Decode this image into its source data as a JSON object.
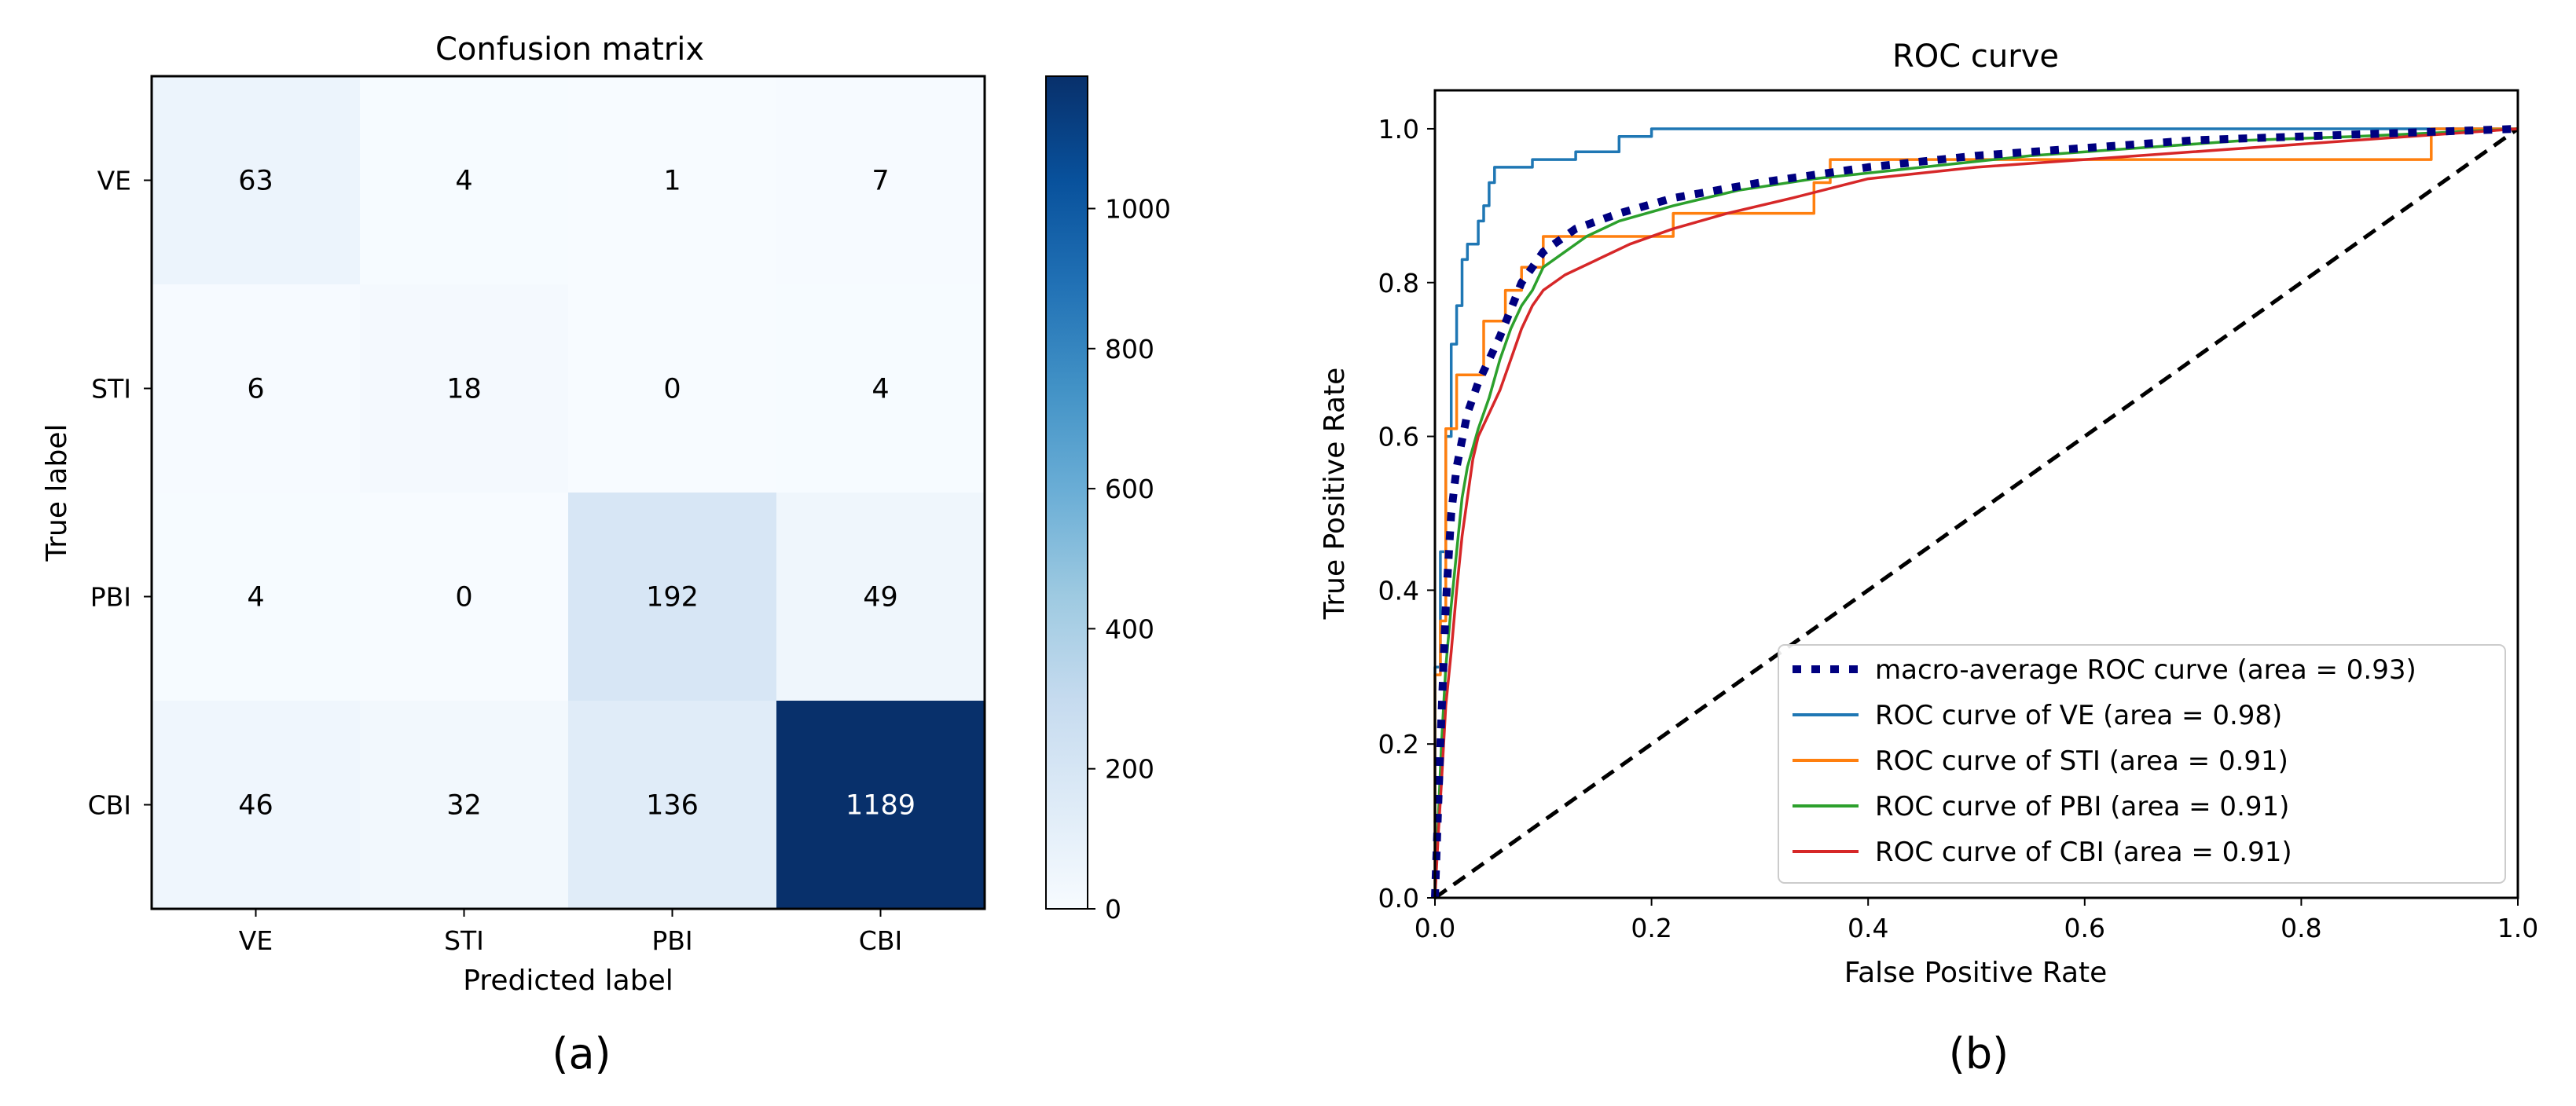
{
  "panel_labels": {
    "a": "(a)",
    "b": "(b)"
  },
  "colors": {
    "ve": "#1f77b4",
    "sti": "#ff7f0e",
    "pbi": "#2ca02c",
    "cbi": "#d62728",
    "macro": "#000080",
    "chance": "#000000"
  },
  "chart_data": [
    {
      "type": "heatmap",
      "title": "Confusion matrix",
      "xlabel": "Predicted label",
      "ylabel": "True label",
      "x_tick_labels": [
        "VE",
        "STI",
        "PBI",
        "CBI"
      ],
      "y_tick_labels": [
        "VE",
        "STI",
        "PBI",
        "CBI"
      ],
      "matrix": [
        [
          63,
          4,
          1,
          7
        ],
        [
          6,
          18,
          0,
          4
        ],
        [
          4,
          0,
          192,
          49
        ],
        [
          46,
          32,
          136,
          1189
        ]
      ],
      "colormap": "Blues",
      "colorbar": {
        "min": 0,
        "max": 1189,
        "ticks": [
          0,
          200,
          400,
          600,
          800,
          1000
        ]
      }
    },
    {
      "type": "line",
      "title": "ROC curve",
      "xlabel": "False Positive Rate",
      "ylabel": "True Positive Rate",
      "xlim": [
        0,
        1
      ],
      "ylim": [
        0,
        1.05
      ],
      "x_ticks": [
        "0.0",
        "0.2",
        "0.4",
        "0.6",
        "0.8",
        "1.0"
      ],
      "y_ticks": [
        "0.0",
        "0.2",
        "0.4",
        "0.6",
        "0.8",
        "1.0"
      ],
      "legend_position": "lower-right",
      "series": [
        {
          "name": "macro-average ROC curve (area = 0.93)",
          "color": "#000080",
          "style": "dotted",
          "points": [
            [
              0,
              0
            ],
            [
              0.005,
              0.2
            ],
            [
              0.01,
              0.38
            ],
            [
              0.015,
              0.5
            ],
            [
              0.02,
              0.56
            ],
            [
              0.03,
              0.63
            ],
            [
              0.04,
              0.67
            ],
            [
              0.05,
              0.7
            ],
            [
              0.06,
              0.73
            ],
            [
              0.08,
              0.8
            ],
            [
              0.1,
              0.84
            ],
            [
              0.13,
              0.87
            ],
            [
              0.17,
              0.89
            ],
            [
              0.22,
              0.91
            ],
            [
              0.3,
              0.93
            ],
            [
              0.4,
              0.95
            ],
            [
              0.5,
              0.965
            ],
            [
              0.6,
              0.975
            ],
            [
              0.7,
              0.985
            ],
            [
              0.8,
              0.99
            ],
            [
              0.9,
              0.995
            ],
            [
              1,
              1
            ]
          ]
        },
        {
          "name": "ROC curve of VE (area = 0.98)",
          "color": "#1f77b4",
          "style": "solid",
          "points": [
            [
              0,
              0
            ],
            [
              0,
              0.3
            ],
            [
              0.005,
              0.3
            ],
            [
              0.005,
              0.45
            ],
            [
              0.01,
              0.45
            ],
            [
              0.01,
              0.6
            ],
            [
              0.015,
              0.6
            ],
            [
              0.015,
              0.72
            ],
            [
              0.02,
              0.72
            ],
            [
              0.02,
              0.77
            ],
            [
              0.025,
              0.77
            ],
            [
              0.025,
              0.83
            ],
            [
              0.03,
              0.83
            ],
            [
              0.03,
              0.85
            ],
            [
              0.04,
              0.85
            ],
            [
              0.04,
              0.88
            ],
            [
              0.045,
              0.88
            ],
            [
              0.045,
              0.9
            ],
            [
              0.05,
              0.9
            ],
            [
              0.05,
              0.93
            ],
            [
              0.055,
              0.93
            ],
            [
              0.055,
              0.95
            ],
            [
              0.09,
              0.95
            ],
            [
              0.09,
              0.96
            ],
            [
              0.13,
              0.96
            ],
            [
              0.13,
              0.97
            ],
            [
              0.17,
              0.97
            ],
            [
              0.17,
              0.99
            ],
            [
              0.2,
              0.99
            ],
            [
              0.2,
              1.0
            ],
            [
              1,
              1
            ]
          ]
        },
        {
          "name": "ROC curve of STI (area = 0.91)",
          "color": "#ff7f0e",
          "style": "solid",
          "points": [
            [
              0,
              0
            ],
            [
              0,
              0.29
            ],
            [
              0.005,
              0.29
            ],
            [
              0.005,
              0.36
            ],
            [
              0.01,
              0.36
            ],
            [
              0.01,
              0.61
            ],
            [
              0.02,
              0.61
            ],
            [
              0.02,
              0.68
            ],
            [
              0.045,
              0.68
            ],
            [
              0.045,
              0.75
            ],
            [
              0.065,
              0.75
            ],
            [
              0.065,
              0.79
            ],
            [
              0.08,
              0.79
            ],
            [
              0.08,
              0.82
            ],
            [
              0.1,
              0.82
            ],
            [
              0.1,
              0.86
            ],
            [
              0.22,
              0.86
            ],
            [
              0.22,
              0.89
            ],
            [
              0.35,
              0.89
            ],
            [
              0.35,
              0.93
            ],
            [
              0.365,
              0.93
            ],
            [
              0.365,
              0.96
            ],
            [
              0.92,
              0.96
            ],
            [
              0.92,
              1.0
            ],
            [
              1,
              1
            ]
          ]
        },
        {
          "name": "ROC curve of PBI (area = 0.91)",
          "color": "#2ca02c",
          "style": "solid",
          "points": [
            [
              0,
              0
            ],
            [
              0.003,
              0.1
            ],
            [
              0.006,
              0.2
            ],
            [
              0.01,
              0.3
            ],
            [
              0.015,
              0.38
            ],
            [
              0.02,
              0.45
            ],
            [
              0.025,
              0.52
            ],
            [
              0.03,
              0.56
            ],
            [
              0.04,
              0.61
            ],
            [
              0.05,
              0.65
            ],
            [
              0.06,
              0.7
            ],
            [
              0.07,
              0.74
            ],
            [
              0.08,
              0.77
            ],
            [
              0.09,
              0.79
            ],
            [
              0.1,
              0.82
            ],
            [
              0.12,
              0.84
            ],
            [
              0.14,
              0.86
            ],
            [
              0.17,
              0.88
            ],
            [
              0.22,
              0.9
            ],
            [
              0.28,
              0.92
            ],
            [
              0.35,
              0.935
            ],
            [
              0.45,
              0.95
            ],
            [
              0.55,
              0.965
            ],
            [
              0.65,
              0.975
            ],
            [
              0.75,
              0.985
            ],
            [
              0.85,
              0.99
            ],
            [
              0.93,
              0.995
            ],
            [
              1,
              1
            ]
          ]
        },
        {
          "name": "ROC curve of CBI (area = 0.91)",
          "color": "#d62728",
          "style": "solid",
          "points": [
            [
              0,
              0
            ],
            [
              0.003,
              0.08
            ],
            [
              0.006,
              0.15
            ],
            [
              0.01,
              0.25
            ],
            [
              0.015,
              0.32
            ],
            [
              0.02,
              0.4
            ],
            [
              0.025,
              0.47
            ],
            [
              0.03,
              0.52
            ],
            [
              0.035,
              0.57
            ],
            [
              0.04,
              0.6
            ],
            [
              0.05,
              0.63
            ],
            [
              0.06,
              0.66
            ],
            [
              0.07,
              0.7
            ],
            [
              0.08,
              0.74
            ],
            [
              0.09,
              0.77
            ],
            [
              0.1,
              0.79
            ],
            [
              0.12,
              0.81
            ],
            [
              0.15,
              0.83
            ],
            [
              0.18,
              0.85
            ],
            [
              0.22,
              0.87
            ],
            [
              0.27,
              0.89
            ],
            [
              0.33,
              0.91
            ],
            [
              0.4,
              0.935
            ],
            [
              0.5,
              0.95
            ],
            [
              0.6,
              0.96
            ],
            [
              0.7,
              0.97
            ],
            [
              0.8,
              0.98
            ],
            [
              0.9,
              0.99
            ],
            [
              1,
              1
            ]
          ]
        }
      ],
      "reference_line": {
        "points": [
          [
            0,
            0
          ],
          [
            1,
            1
          ]
        ],
        "style": "dashed",
        "color": "#000000"
      }
    }
  ]
}
